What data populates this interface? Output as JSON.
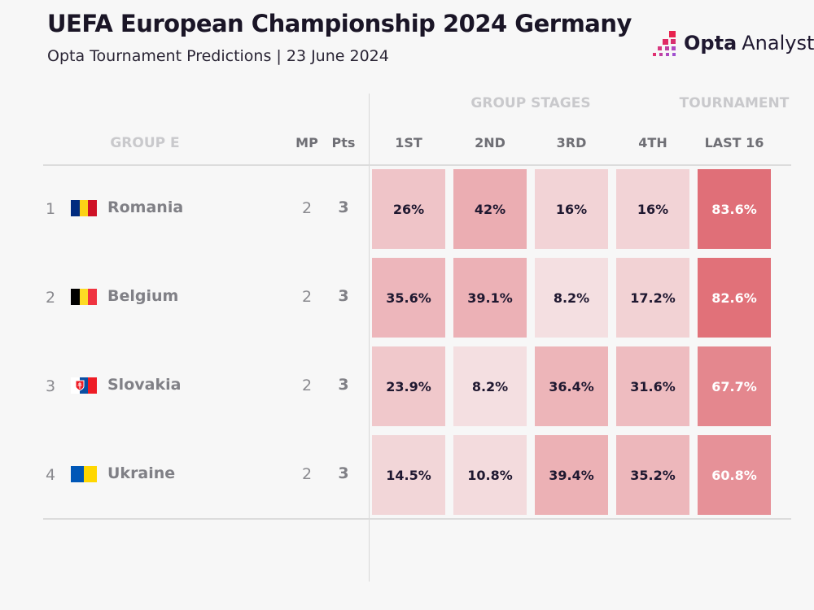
{
  "title": "UEFA European Championship 2024 Germany",
  "subtitle": "Opta Tournament Predictions | 23 June 2024",
  "logo": {
    "bold": "Opta",
    "light": "Analyst"
  },
  "headers": {
    "group_stages": "GROUP STAGES",
    "tournament": "TOURNAMENT",
    "group": "GROUP E",
    "mp": "MP",
    "pts": "Pts",
    "cols": [
      "1ST",
      "2ND",
      "3RD",
      "4TH",
      "LAST 16"
    ]
  },
  "colors": {
    "low": "#f6ebec",
    "high": "#e06d76",
    "text_dark": "#1f1830",
    "text_light": "#ffffff"
  },
  "chart_data": {
    "type": "table",
    "title": "UEFA European Championship 2024 Germany",
    "subtitle": "Opta Tournament Predictions | 23 June 2024",
    "columns": [
      "1ST",
      "2ND",
      "3RD",
      "4TH",
      "LAST 16"
    ],
    "rows": [
      {
        "rank": "1",
        "team": "Romania",
        "flag": [
          "#002b7f",
          "#fcd116",
          "#ce1126"
        ],
        "mp": "2",
        "pts": "3",
        "values": [
          "26%",
          "42%",
          "16%",
          "16%",
          "83.6%"
        ]
      },
      {
        "rank": "2",
        "team": "Belgium",
        "flag": [
          "#000000",
          "#fdda24",
          "#ef3340"
        ],
        "mp": "2",
        "pts": "3",
        "values": [
          "35.6%",
          "39.1%",
          "8.2%",
          "17.2%",
          "82.6%"
        ]
      },
      {
        "rank": "3",
        "team": "Slovakia",
        "flag": [
          "#ffffff",
          "#0b4ea2",
          "#ee1c25"
        ],
        "mp": "2",
        "pts": "3",
        "values": [
          "23.9%",
          "8.2%",
          "36.4%",
          "31.6%",
          "67.7%"
        ]
      },
      {
        "rank": "4",
        "team": "Ukraine",
        "flag": [
          "#0057b7",
          "#ffd700"
        ],
        "mp": "2",
        "pts": "3",
        "values": [
          "14.5%",
          "10.8%",
          "39.4%",
          "35.2%",
          "60.8%"
        ]
      }
    ]
  }
}
